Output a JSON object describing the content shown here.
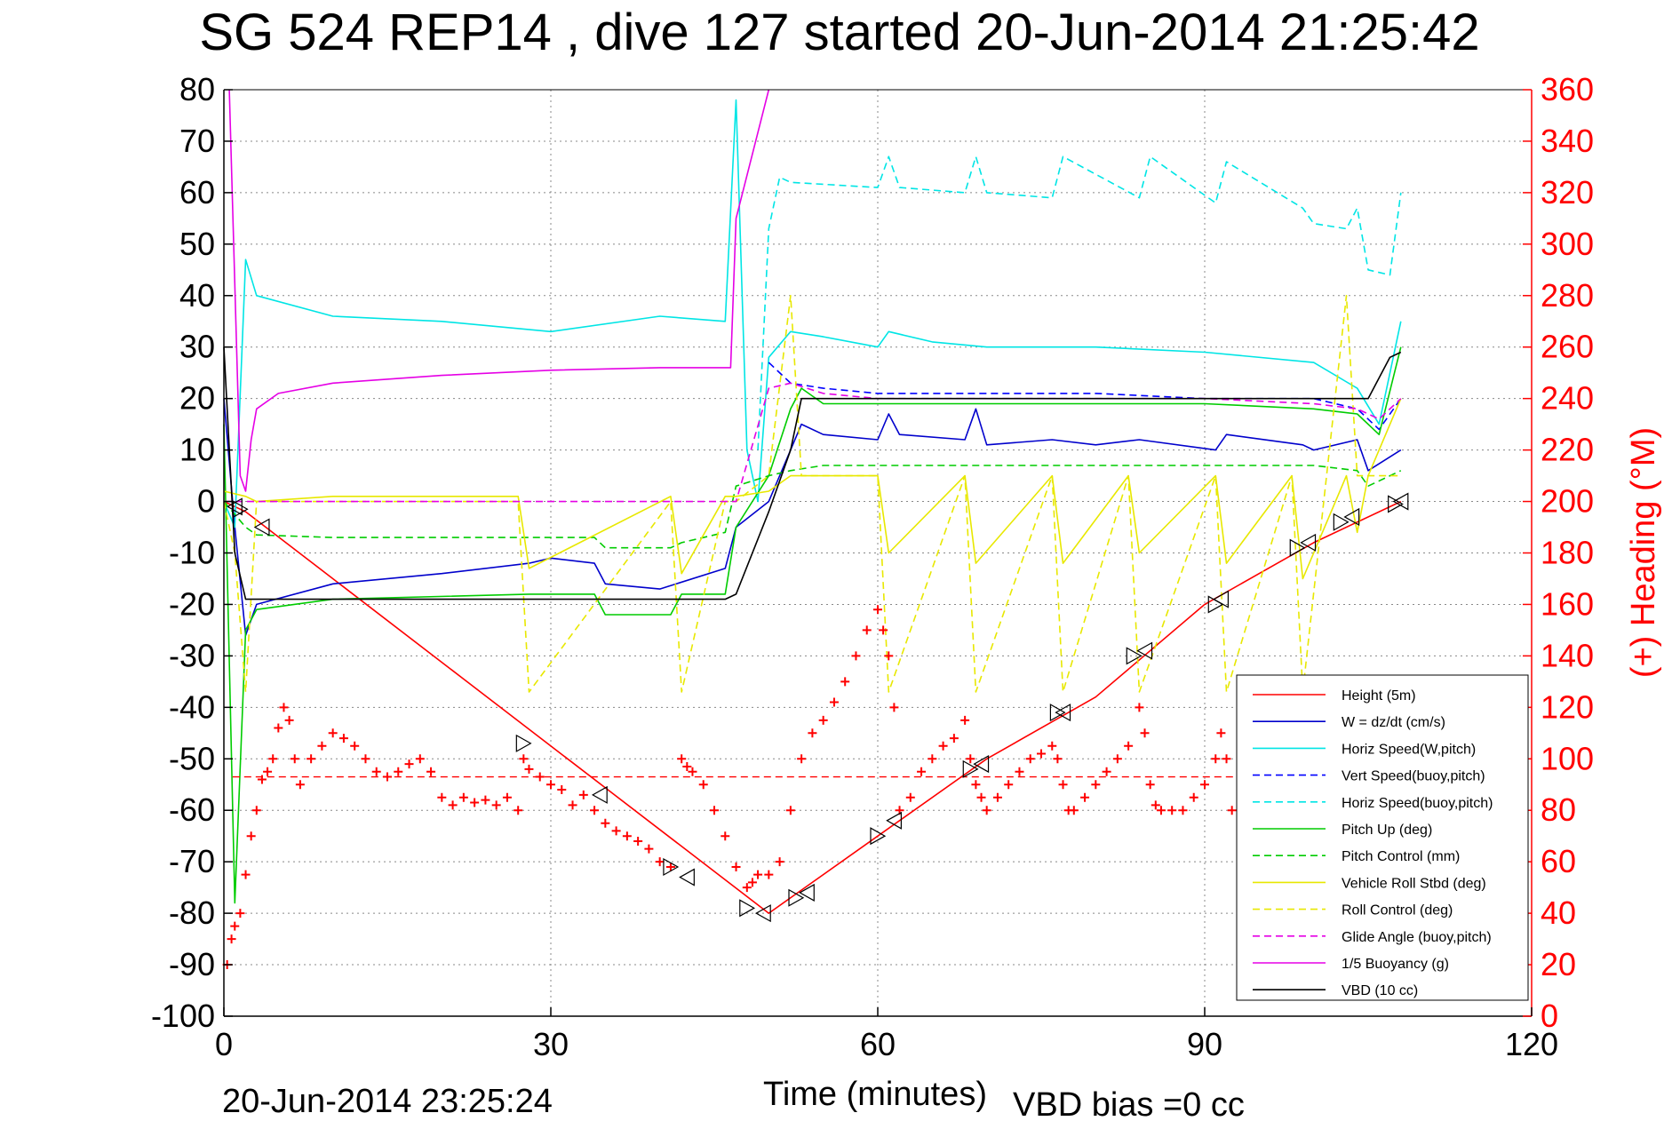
{
  "chart_data": {
    "type": "line",
    "title": "SG 524   REP14  , dive 127 started 20-Jun-2014 21:25:42",
    "xlabel": "Time (minutes)",
    "ylabel_right": "(+) Heading (°M)",
    "xlim": [
      0,
      120
    ],
    "ylim": [
      -100,
      80
    ],
    "ylim_right": [
      0,
      360
    ],
    "x_ticks": [
      "0",
      "30",
      "60",
      "90",
      "120"
    ],
    "y_ticks_left": [
      "80",
      "70",
      "60",
      "50",
      "40",
      "30",
      "20",
      "10",
      "0",
      "-10",
      "-20",
      "-30",
      "-40",
      "-50",
      "-60",
      "-70",
      "-80",
      "-90",
      "-100"
    ],
    "y_ticks_right": [
      "360",
      "340",
      "320",
      "300",
      "280",
      "260",
      "240",
      "220",
      "200",
      "180",
      "160",
      "140",
      "120",
      "100",
      "80",
      "60",
      "40",
      "20",
      "0"
    ],
    "grid": true,
    "legend_position": "bottom-right",
    "footer_left": "20-Jun-2014 23:25:24",
    "footer_right": "VBD bias =0 cc",
    "series": [
      {
        "name": "Height (5m)",
        "color": "#ff0000",
        "dash": "solid",
        "x": [
          0,
          1,
          2,
          50,
          60,
          70,
          80,
          90,
          100,
          108
        ],
        "y": [
          0,
          -1,
          -2,
          -80,
          -65,
          -50,
          -38,
          -20,
          -8,
          0
        ]
      },
      {
        "name": "W = dz/dt (cm/s)",
        "color": "#0000cc",
        "dash": "solid",
        "x": [
          0,
          1,
          2,
          3,
          10,
          20,
          28,
          30,
          34,
          35,
          40,
          46,
          47,
          50,
          52,
          53,
          55,
          60,
          61,
          62,
          68,
          69,
          70,
          76,
          80,
          84,
          91,
          92,
          99,
          100,
          104,
          105,
          108
        ],
        "y": [
          20,
          -5,
          -26,
          -20,
          -16,
          -14,
          -12,
          -11,
          -12,
          -16,
          -17,
          -13,
          -5,
          0,
          10,
          15,
          13,
          12,
          17,
          13,
          12,
          18,
          11,
          12,
          11,
          12,
          10,
          13,
          11,
          10,
          12,
          6,
          10
        ]
      },
      {
        "name": "Horiz Speed(W,pitch)",
        "color": "#00e5e5",
        "dash": "solid",
        "x": [
          0,
          1,
          2,
          3,
          10,
          20,
          30,
          40,
          46,
          47,
          48,
          49,
          50,
          52,
          55,
          60,
          61,
          65,
          70,
          80,
          90,
          100,
          104,
          106,
          108
        ],
        "y": [
          0,
          -5,
          47,
          40,
          36,
          35,
          33,
          36,
          35,
          78,
          10,
          0,
          28,
          33,
          32,
          30,
          33,
          31,
          30,
          30,
          29,
          27,
          22,
          15,
          35
        ]
      },
      {
        "name": "Vert Speed(buoy,pitch)",
        "color": "#0000ff",
        "dash": "dashed",
        "x": [
          50,
          52,
          55,
          60,
          70,
          80,
          90,
          100,
          104,
          106,
          108
        ],
        "y": [
          27,
          23,
          22,
          21,
          21,
          21,
          20,
          20,
          18,
          14,
          20
        ]
      },
      {
        "name": "Horiz Speed(buoy,pitch)",
        "color": "#00e5e5",
        "dash": "dashed",
        "x": [
          49,
          50,
          51,
          52,
          60,
          61,
          62,
          68,
          69,
          70,
          76,
          77,
          84,
          85,
          91,
          92,
          99,
          100,
          103,
          104,
          105,
          107,
          108
        ],
        "y": [
          10,
          53,
          63,
          62,
          61,
          67,
          61,
          60,
          67,
          60,
          59,
          67,
          59,
          67,
          58,
          66,
          57,
          54,
          53,
          57,
          45,
          44,
          60
        ]
      },
      {
        "name": "Pitch Up (deg)",
        "color": "#00cc00",
        "dash": "solid",
        "x": [
          0,
          1,
          2,
          3,
          10,
          28,
          34,
          35,
          41,
          42,
          46,
          47,
          50,
          52,
          53,
          55,
          60,
          70,
          80,
          90,
          100,
          104,
          106,
          108
        ],
        "y": [
          15,
          -78,
          -25,
          -21,
          -19,
          -18,
          -18,
          -22,
          -22,
          -18,
          -18,
          -5,
          5,
          18,
          22,
          19,
          19,
          19,
          19,
          19,
          18,
          17,
          13,
          30
        ]
      },
      {
        "name": "Pitch Control (mm)",
        "color": "#00cc00",
        "dash": "dashed",
        "x": [
          0,
          2,
          3,
          10,
          30,
          34,
          35,
          41,
          42,
          46,
          47,
          50,
          52,
          55,
          60,
          70,
          80,
          90,
          100,
          104,
          105,
          108
        ],
        "y": [
          0,
          -5,
          -6.5,
          -7,
          -7,
          -7,
          -9,
          -9,
          -8,
          -6,
          3,
          5,
          6,
          7,
          7,
          7,
          7,
          7,
          7,
          6,
          3,
          6
        ]
      },
      {
        "name": "Vehicle Roll Stbd (deg)",
        "color": "#e8e800",
        "dash": "solid",
        "x": [
          0,
          2,
          3,
          10,
          27,
          28,
          41,
          42,
          46,
          47,
          50,
          52,
          60,
          61,
          68,
          69,
          76,
          77,
          83,
          84,
          91,
          92,
          98,
          99,
          103,
          104,
          105,
          108
        ],
        "y": [
          2,
          1,
          0,
          1,
          1,
          -13,
          1,
          -14,
          1,
          1,
          2,
          5,
          5,
          -10,
          5,
          -12,
          5,
          -12,
          5,
          -10,
          5,
          -12,
          5,
          -15,
          5,
          -6,
          5,
          20
        ]
      },
      {
        "name": "Roll Control (deg)",
        "color": "#e8e800",
        "dash": "dashed",
        "x": [
          0,
          1,
          2,
          3,
          10,
          27,
          28,
          41,
          42,
          46,
          47,
          50,
          52,
          53,
          60,
          61,
          68,
          69,
          76,
          77,
          83,
          84,
          91,
          92,
          98,
          99,
          103,
          104,
          105,
          108
        ],
        "y": [
          0,
          -10,
          -37,
          0,
          0,
          0,
          -37,
          0,
          -37,
          0,
          0,
          5,
          40,
          5,
          5,
          -37,
          5,
          -37,
          5,
          -37,
          5,
          -37,
          5,
          -37,
          5,
          -37,
          40,
          5,
          5,
          5
        ]
      },
      {
        "name": "Glide Angle (buoy,pitch)",
        "color": "#e500e5",
        "dash": "dashed",
        "x": [
          0,
          47,
          50,
          52,
          55,
          60,
          70,
          80,
          90,
          100,
          104,
          106,
          108
        ],
        "y": [
          0,
          0,
          22,
          23,
          21,
          20,
          20,
          20,
          20,
          19,
          18,
          16,
          20
        ]
      },
      {
        "name": "1/5 Buoyancy (g)",
        "color": "#e500e5",
        "dash": "solid",
        "x": [
          0.5,
          1.5,
          2,
          2.5,
          3,
          5,
          10,
          20,
          30,
          40,
          46.5,
          47,
          50
        ],
        "y": [
          80,
          5,
          2,
          12,
          18,
          21,
          23,
          24.5,
          25.5,
          26,
          26,
          55,
          80
        ]
      },
      {
        "name": "VBD (10 cc)",
        "color": "#000000",
        "dash": "solid",
        "x": [
          0,
          1,
          2,
          3,
          10,
          20,
          30,
          40,
          46,
          47,
          50,
          52,
          53,
          60,
          70,
          80,
          90,
          100,
          105,
          107,
          108
        ],
        "y": [
          30,
          -10,
          -19,
          -19,
          -19,
          -19,
          -19,
          -19,
          -19,
          -18,
          -2,
          10,
          20,
          20,
          20,
          20,
          20,
          20,
          20,
          28,
          29
        ]
      }
    ],
    "heading_series": {
      "name": "Heading",
      "axis": "right",
      "color": "#ff0000",
      "marker": "+",
      "x": [
        0.3,
        0.7,
        1.0,
        1.5,
        2.0,
        2.5,
        3.0,
        3.5,
        4.0,
        4.5,
        5.0,
        5.5,
        6.0,
        6.5,
        7.0,
        8.0,
        9.0,
        10.0,
        11.0,
        12.0,
        13.0,
        14.0,
        15.0,
        16.0,
        17.0,
        18.0,
        19.0,
        20.0,
        21.0,
        22.0,
        23.0,
        24.0,
        25.0,
        26.0,
        27.0,
        27.5,
        28.0,
        29.0,
        30.0,
        31.0,
        32.0,
        33.0,
        34.0,
        35.0,
        36.0,
        37.0,
        38.0,
        39.0,
        40.0,
        41.0,
        42.0,
        42.5,
        43.0,
        44.0,
        45.0,
        46.0,
        47.0,
        48.0,
        48.5,
        49.0,
        50.0,
        51.0,
        52.0,
        53.0,
        54.0,
        55.0,
        56.0,
        57.0,
        58.0,
        59.0,
        60.0,
        60.5,
        61.0,
        61.5,
        62.0,
        63.0,
        64.0,
        65.0,
        66.0,
        67.0,
        68.0,
        68.5,
        69.0,
        69.5,
        70.0,
        71.0,
        72.0,
        73.0,
        74.0,
        75.0,
        76.0,
        76.5,
        77.0,
        77.5,
        78.0,
        79.0,
        80.0,
        81.0,
        82.0,
        83.0,
        84.0,
        84.5,
        85.0,
        85.5,
        86.0,
        87.0,
        88.0,
        89.0,
        90.0,
        91.0,
        91.5,
        92.0,
        92.5
      ],
      "y": [
        20,
        30,
        35,
        40,
        55,
        70,
        80,
        92,
        95,
        100,
        112,
        120,
        115,
        100,
        90,
        100,
        105,
        110,
        108,
        105,
        100,
        95,
        93,
        95,
        98,
        100,
        95,
        85,
        82,
        85,
        83,
        84,
        82,
        85,
        80,
        100,
        96,
        93,
        90,
        88,
        82,
        86,
        80,
        75,
        72,
        70,
        68,
        65,
        60,
        58,
        100,
        97,
        95,
        90,
        80,
        70,
        58,
        50,
        52,
        55,
        55,
        60,
        80,
        100,
        110,
        115,
        122,
        130,
        140,
        150,
        158,
        150,
        140,
        120,
        80,
        85,
        95,
        100,
        105,
        108,
        115,
        100,
        90,
        85,
        80,
        85,
        90,
        95,
        100,
        102,
        105,
        100,
        90,
        80,
        80,
        85,
        90,
        95,
        100,
        105,
        120,
        110,
        90,
        82,
        80,
        80,
        80,
        85,
        90,
        100,
        110,
        100,
        80
      ]
    },
    "heading_mean": {
      "axis": "right",
      "value": 93,
      "color": "#ff0000",
      "dash": "dashed",
      "x": [
        0.8,
        109
      ]
    },
    "waypoint_markers": {
      "color": "#000000",
      "x": [
        1,
        1.5,
        3.5,
        27.5,
        34.5,
        41,
        42.5,
        48,
        49.5,
        52.5,
        53.5,
        60,
        61.5,
        68.5,
        69.5,
        76.5,
        77,
        83.5,
        84.5,
        91,
        91.5,
        98.5,
        99.5,
        102.5,
        103.5,
        107.5,
        108
      ],
      "y": [
        -1,
        -1.5,
        -5,
        -47,
        -57,
        -71,
        -73,
        -79,
        -80,
        -77,
        -76,
        -65,
        -62,
        -52,
        -51,
        -41,
        -41,
        -30,
        -29,
        -20,
        -19,
        -9,
        -8,
        -4,
        -3,
        -0.5,
        0
      ]
    }
  }
}
